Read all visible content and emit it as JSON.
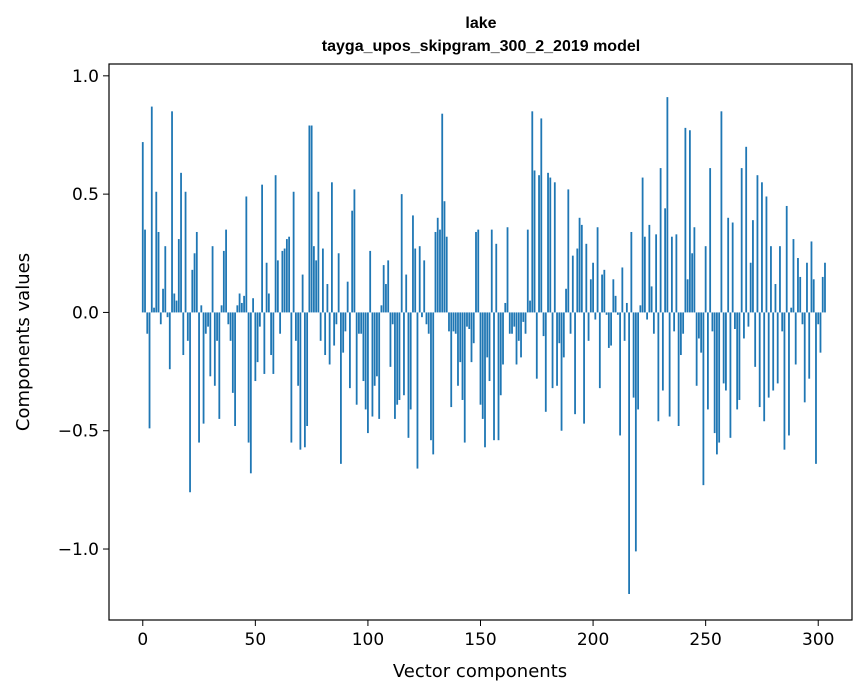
{
  "chart_data": {
    "type": "bar",
    "title_line1": "lake",
    "title_line2": "tayga_upos_skipgram_300_2_2019 model",
    "xlabel": "Vector components",
    "ylabel": "Components values",
    "xlim": [
      -15,
      315
    ],
    "ylim": [
      -1.3,
      1.05
    ],
    "xticks": [
      0,
      50,
      100,
      150,
      200,
      250,
      300
    ],
    "xtick_labels": [
      "0",
      "50",
      "100",
      "150",
      "200",
      "250",
      "300"
    ],
    "yticks": [
      1.0,
      0.5,
      0.0,
      -0.5,
      -1.0
    ],
    "ytick_labels": [
      "1.0",
      "0.5",
      "0.0",
      "−0.5",
      "−1.0"
    ],
    "bar_color": "#1f77b4",
    "values": [
      0.72,
      0.35,
      -0.09,
      -0.49,
      0.87,
      0.02,
      0.51,
      0.34,
      -0.05,
      0.1,
      0.28,
      -0.02,
      -0.24,
      0.85,
      0.08,
      0.05,
      0.31,
      0.59,
      -0.18,
      0.51,
      -0.12,
      -0.76,
      0.18,
      0.25,
      0.34,
      -0.55,
      0.03,
      -0.47,
      -0.09,
      -0.06,
      -0.27,
      0.28,
      -0.31,
      -0.12,
      -0.45,
      0.03,
      0.26,
      0.35,
      -0.05,
      -0.12,
      -0.34,
      -0.48,
      0.03,
      0.08,
      0.04,
      0.07,
      0.49,
      -0.55,
      -0.68,
      0.06,
      -0.29,
      -0.21,
      -0.06,
      0.54,
      -0.26,
      0.21,
      0.08,
      -0.18,
      -0.26,
      0.58,
      0.22,
      -0.09,
      0.26,
      0.27,
      0.31,
      0.32,
      -0.55,
      0.51,
      -0.12,
      -0.31,
      -0.58,
      0.16,
      -0.57,
      -0.48,
      0.79,
      0.79,
      0.28,
      0.22,
      0.51,
      -0.12,
      0.27,
      -0.18,
      0.12,
      -0.22,
      0.55,
      -0.14,
      -0.05,
      0.25,
      -0.64,
      -0.17,
      -0.08,
      0.13,
      -0.32,
      0.43,
      0.52,
      -0.39,
      -0.09,
      -0.09,
      -0.29,
      -0.41,
      -0.51,
      0.26,
      -0.44,
      -0.31,
      -0.27,
      -0.45,
      0.03,
      0.2,
      0.12,
      0.22,
      -0.23,
      -0.05,
      -0.45,
      -0.39,
      -0.37,
      0.5,
      -0.35,
      0.16,
      -0.53,
      -0.41,
      0.41,
      0.27,
      -0.66,
      0.28,
      -0.02,
      0.22,
      -0.05,
      -0.09,
      -0.54,
      -0.6,
      0.34,
      0.4,
      0.35,
      0.84,
      0.47,
      0.32,
      -0.08,
      -0.4,
      -0.08,
      -0.09,
      -0.31,
      -0.21,
      -0.37,
      -0.55,
      -0.06,
      -0.07,
      -0.21,
      -0.13,
      0.34,
      0.35,
      -0.39,
      -0.45,
      -0.57,
      -0.19,
      -0.29,
      0.35,
      -0.54,
      0.29,
      -0.54,
      -0.35,
      -0.22,
      0.04,
      0.36,
      -0.09,
      -0.09,
      -0.06,
      -0.22,
      -0.12,
      -0.19,
      -0.04,
      -0.09,
      0.35,
      0.05,
      0.85,
      0.6,
      -0.28,
      0.58,
      0.82,
      -0.1,
      -0.42,
      0.59,
      0.57,
      -0.32,
      0.55,
      -0.31,
      -0.13,
      -0.5,
      -0.19,
      0.1,
      0.52,
      -0.09,
      0.24,
      -0.43,
      0.27,
      0.4,
      0.37,
      -0.47,
      0.29,
      -0.12,
      0.14,
      0.21,
      -0.03,
      0.36,
      -0.32,
      0.16,
      0.18,
      -0.01,
      -0.15,
      -0.14,
      0.14,
      0.07,
      -0.01,
      -0.52,
      0.19,
      -0.12,
      0.04,
      -1.19,
      0.34,
      -0.36,
      -1.01,
      -0.41,
      0.03,
      0.57,
      0.32,
      -0.03,
      0.37,
      0.11,
      -0.09,
      0.33,
      -0.46,
      0.61,
      -0.33,
      0.44,
      0.91,
      -0.44,
      0.32,
      -0.08,
      0.33,
      -0.48,
      -0.18,
      -0.09,
      0.78,
      0.14,
      0.77,
      0.25,
      0.36,
      -0.31,
      -0.11,
      -0.17,
      -0.73,
      0.28,
      -0.41,
      0.61,
      -0.08,
      -0.51,
      -0.6,
      -0.55,
      0.85,
      -0.3,
      -0.33,
      0.4,
      -0.53,
      0.38,
      -0.07,
      -0.41,
      -0.37,
      0.61,
      -0.11,
      0.7,
      -0.06,
      0.21,
      0.39,
      -0.23,
      0.58,
      -0.4,
      0.55,
      -0.46,
      0.49,
      -0.36,
      0.28,
      -0.33,
      0.12,
      -0.3,
      0.28,
      -0.08,
      -0.58,
      0.45,
      -0.52,
      0.02,
      0.31,
      -0.22,
      0.23,
      0.15,
      -0.05,
      -0.38,
      0.21,
      -0.28,
      0.3,
      0.14,
      -0.64,
      -0.05,
      -0.17,
      0.15,
      0.21
    ]
  }
}
